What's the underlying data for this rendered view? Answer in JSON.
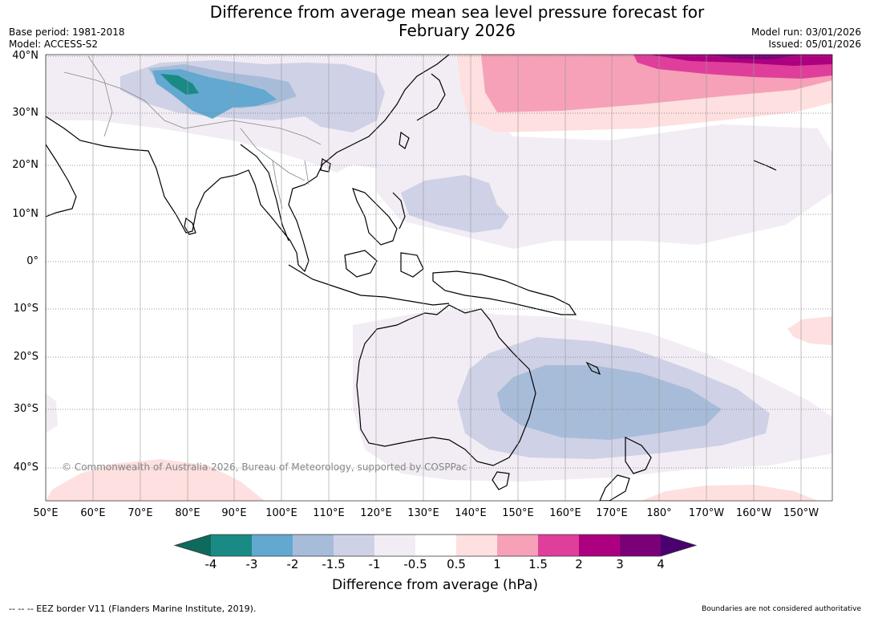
{
  "title": {
    "line1": "Difference from average mean sea level pressure forecast for",
    "line2": "February 2026"
  },
  "meta": {
    "base_period": "Base period: 1981-2018",
    "model": "Model: ACCESS-S2",
    "model_run": "Model run: 03/01/2026",
    "issued": "Issued: 05/01/2026"
  },
  "latitudes": [
    "40°N",
    "30°N",
    "20°N",
    "10°N",
    "0°",
    "10°S",
    "20°S",
    "30°S",
    "40°S"
  ],
  "longitudes": [
    "50°E",
    "60°E",
    "70°E",
    "80°E",
    "90°E",
    "100°E",
    "110°E",
    "120°E",
    "130°E",
    "140°E",
    "150°E",
    "160°E",
    "170°E",
    "180°",
    "170°W",
    "160°W",
    "150°W"
  ],
  "copyright": "© Commonwealth of Australia 2026, Bureau of Meteorology, supported by COSPPac",
  "colorbar": {
    "ticks": [
      "-4",
      "-3",
      "-2",
      "-1.5",
      "-1",
      "-0.5",
      "0.5",
      "1",
      "1.5",
      "2",
      "3",
      "4"
    ],
    "colors": [
      "#1a8a85",
      "#62a8d0",
      "#a7bcd8",
      "#cfd1e6",
      "#f2edf4",
      "#ffffff",
      "#fde0df",
      "#f6a1b8",
      "#df3f9a",
      "#ad0080",
      "#7a0078"
    ],
    "under_color": "#0e6b5c",
    "over_color": "#4a0070",
    "label": "Difference from average (hPa)"
  },
  "footer": {
    "legend": "--  --  -- EEZ border V11 (Flanders Marine Institute, 2019).",
    "disclaimer": "Boundaries are not considered authoritative"
  }
}
